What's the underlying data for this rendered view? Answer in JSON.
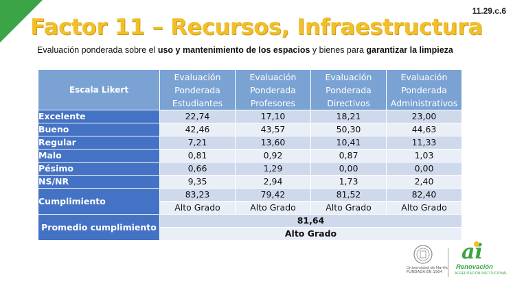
{
  "slide_code": "11.29.c.6",
  "title": "Factor 11 – Recursos, Infraestructura",
  "subtitle": {
    "p1": "Evaluación ponderada sobre el ",
    "b1": "uso y mantenimiento de los espacios",
    "p2": " y bienes para ",
    "b2": "garantizar la limpieza"
  },
  "table": {
    "headers": {
      "scale": "Escala Likert",
      "col1": [
        "Evaluación",
        "Ponderada",
        "Estudiantes"
      ],
      "col2": [
        "Evaluación",
        "Ponderada",
        "Profesores"
      ],
      "col3": [
        "Evaluación",
        "Ponderada",
        "Directivos"
      ],
      "col4": [
        "Evaluación",
        "Ponderada",
        "Administrativos"
      ]
    },
    "rows": [
      {
        "label": "Excelente",
        "values": [
          "22,74",
          "17,10",
          "18,21",
          "23,00"
        ]
      },
      {
        "label": "Bueno",
        "values": [
          "42,46",
          "43,57",
          "50,30",
          "44,63"
        ]
      },
      {
        "label": "Regular",
        "values": [
          "7,21",
          "13,60",
          "10,41",
          "11,33"
        ]
      },
      {
        "label": "Malo",
        "values": [
          "0,81",
          "0,92",
          "0,87",
          "1,03"
        ]
      },
      {
        "label": "Pésimo",
        "values": [
          "0,66",
          "1,29",
          "0,00",
          "0,00"
        ]
      },
      {
        "label": "NS/NR",
        "values": [
          "9,35",
          "2,94",
          "1,73",
          "2,40"
        ]
      }
    ],
    "cumplimiento": {
      "label": "Cumplimiento",
      "values": [
        "83,23",
        "79,42",
        "81,52",
        "82,40"
      ],
      "grades": [
        "Alto Grado",
        "Alto Grado",
        "Alto Grado",
        "Alto Grado"
      ]
    },
    "promedio": {
      "label": "Promedio cumplimiento",
      "value": "81,64",
      "grade": "Alto Grado"
    }
  },
  "footer": {
    "university_name": "Universidad de Nariño",
    "university_sub": "FUNDADA EN 1904",
    "logo_mark": "ai",
    "logo_name": "Renovación",
    "logo_sub": "ACREDITACIÓN INSTITUCIONAL"
  },
  "colors": {
    "title": "#f2bf2a",
    "corner": "#3aa447",
    "header_bg": "#7aa3d4",
    "label_bg": "#4472c4",
    "row_dark": "#cfd9ec",
    "row_light": "#e9eef7"
  }
}
